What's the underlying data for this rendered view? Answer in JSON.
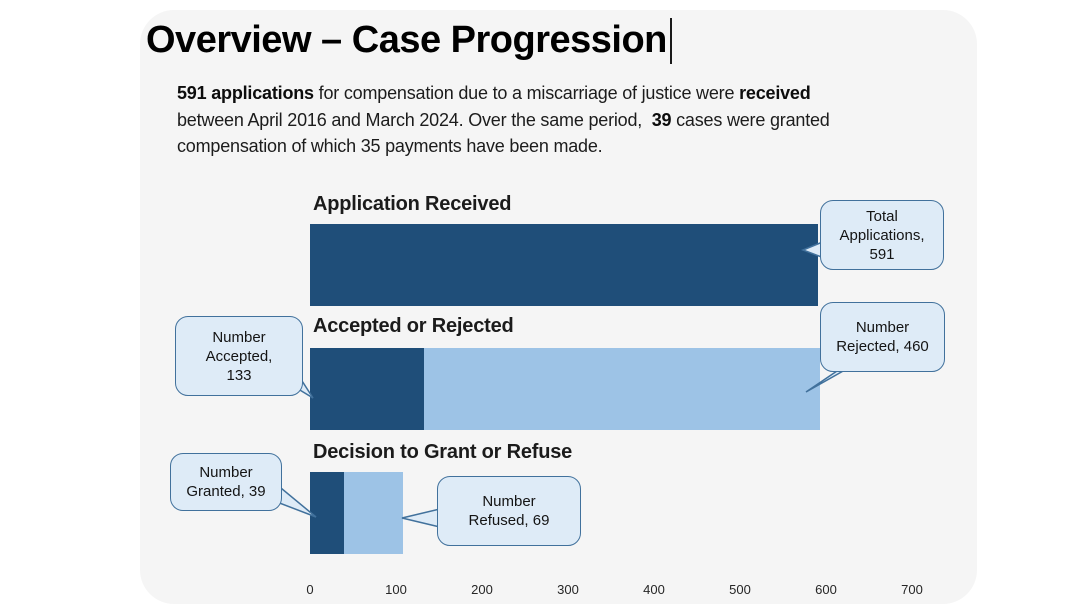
{
  "window": {
    "background": "#FFFFFF",
    "slide_background": "#F5F5F5"
  },
  "title": {
    "text": "Overview – Case Progression"
  },
  "intro": {
    "segments": [
      {
        "b": 1,
        "t": "591 applications"
      },
      {
        "t": " for compensation due to a miscarriage of justice were "
      },
      {
        "b": 1,
        "t": "received"
      },
      {
        "br": 1
      },
      {
        "t": "between April 2016 and March 2024. Over the same period,  "
      },
      {
        "b": 1,
        "t": "39"
      },
      {
        "t": " cases were granted"
      },
      {
        "br": 1
      },
      {
        "t": "compensation of which 35 payments have been made."
      }
    ]
  },
  "chart_data": {
    "type": "bar",
    "orientation": "horizontal",
    "title": "",
    "x_ticks": [
      "0",
      "100",
      "200",
      "300",
      "400",
      "500",
      "600",
      "700"
    ],
    "x_range": [
      0,
      700
    ],
    "grid": false,
    "legend": false,
    "colors": {
      "dark": "#1F4E79",
      "light": "#9DC3E6"
    },
    "rows": [
      {
        "label": "Application Received",
        "segments": [
          {
            "name": "Total Applications",
            "value": 591,
            "color": "dark"
          }
        ]
      },
      {
        "label": "Accepted or Rejected",
        "segments": [
          {
            "name": "Number Accepted",
            "value": 133,
            "color": "dark"
          },
          {
            "name": "Number Rejected",
            "value": 460,
            "color": "light"
          }
        ]
      },
      {
        "label": "Decision to Grant or Refuse",
        "segments": [
          {
            "name": "Number Granted",
            "value": 39,
            "color": "dark"
          },
          {
            "name": "Number Refused",
            "value": 69,
            "color": "light"
          }
        ]
      }
    ]
  },
  "callouts": {
    "total_applications": {
      "lines": [
        "Total",
        "Applications,",
        "591"
      ]
    },
    "number_accepted": {
      "lines": [
        "Number",
        "Accepted,",
        "133"
      ]
    },
    "number_rejected": {
      "lines": [
        "Number",
        "Rejected, 460"
      ]
    },
    "number_granted": {
      "lines": [
        "Number",
        "Granted, 39"
      ]
    },
    "number_refused": {
      "lines": [
        "Number",
        "Refused, 69"
      ]
    }
  }
}
